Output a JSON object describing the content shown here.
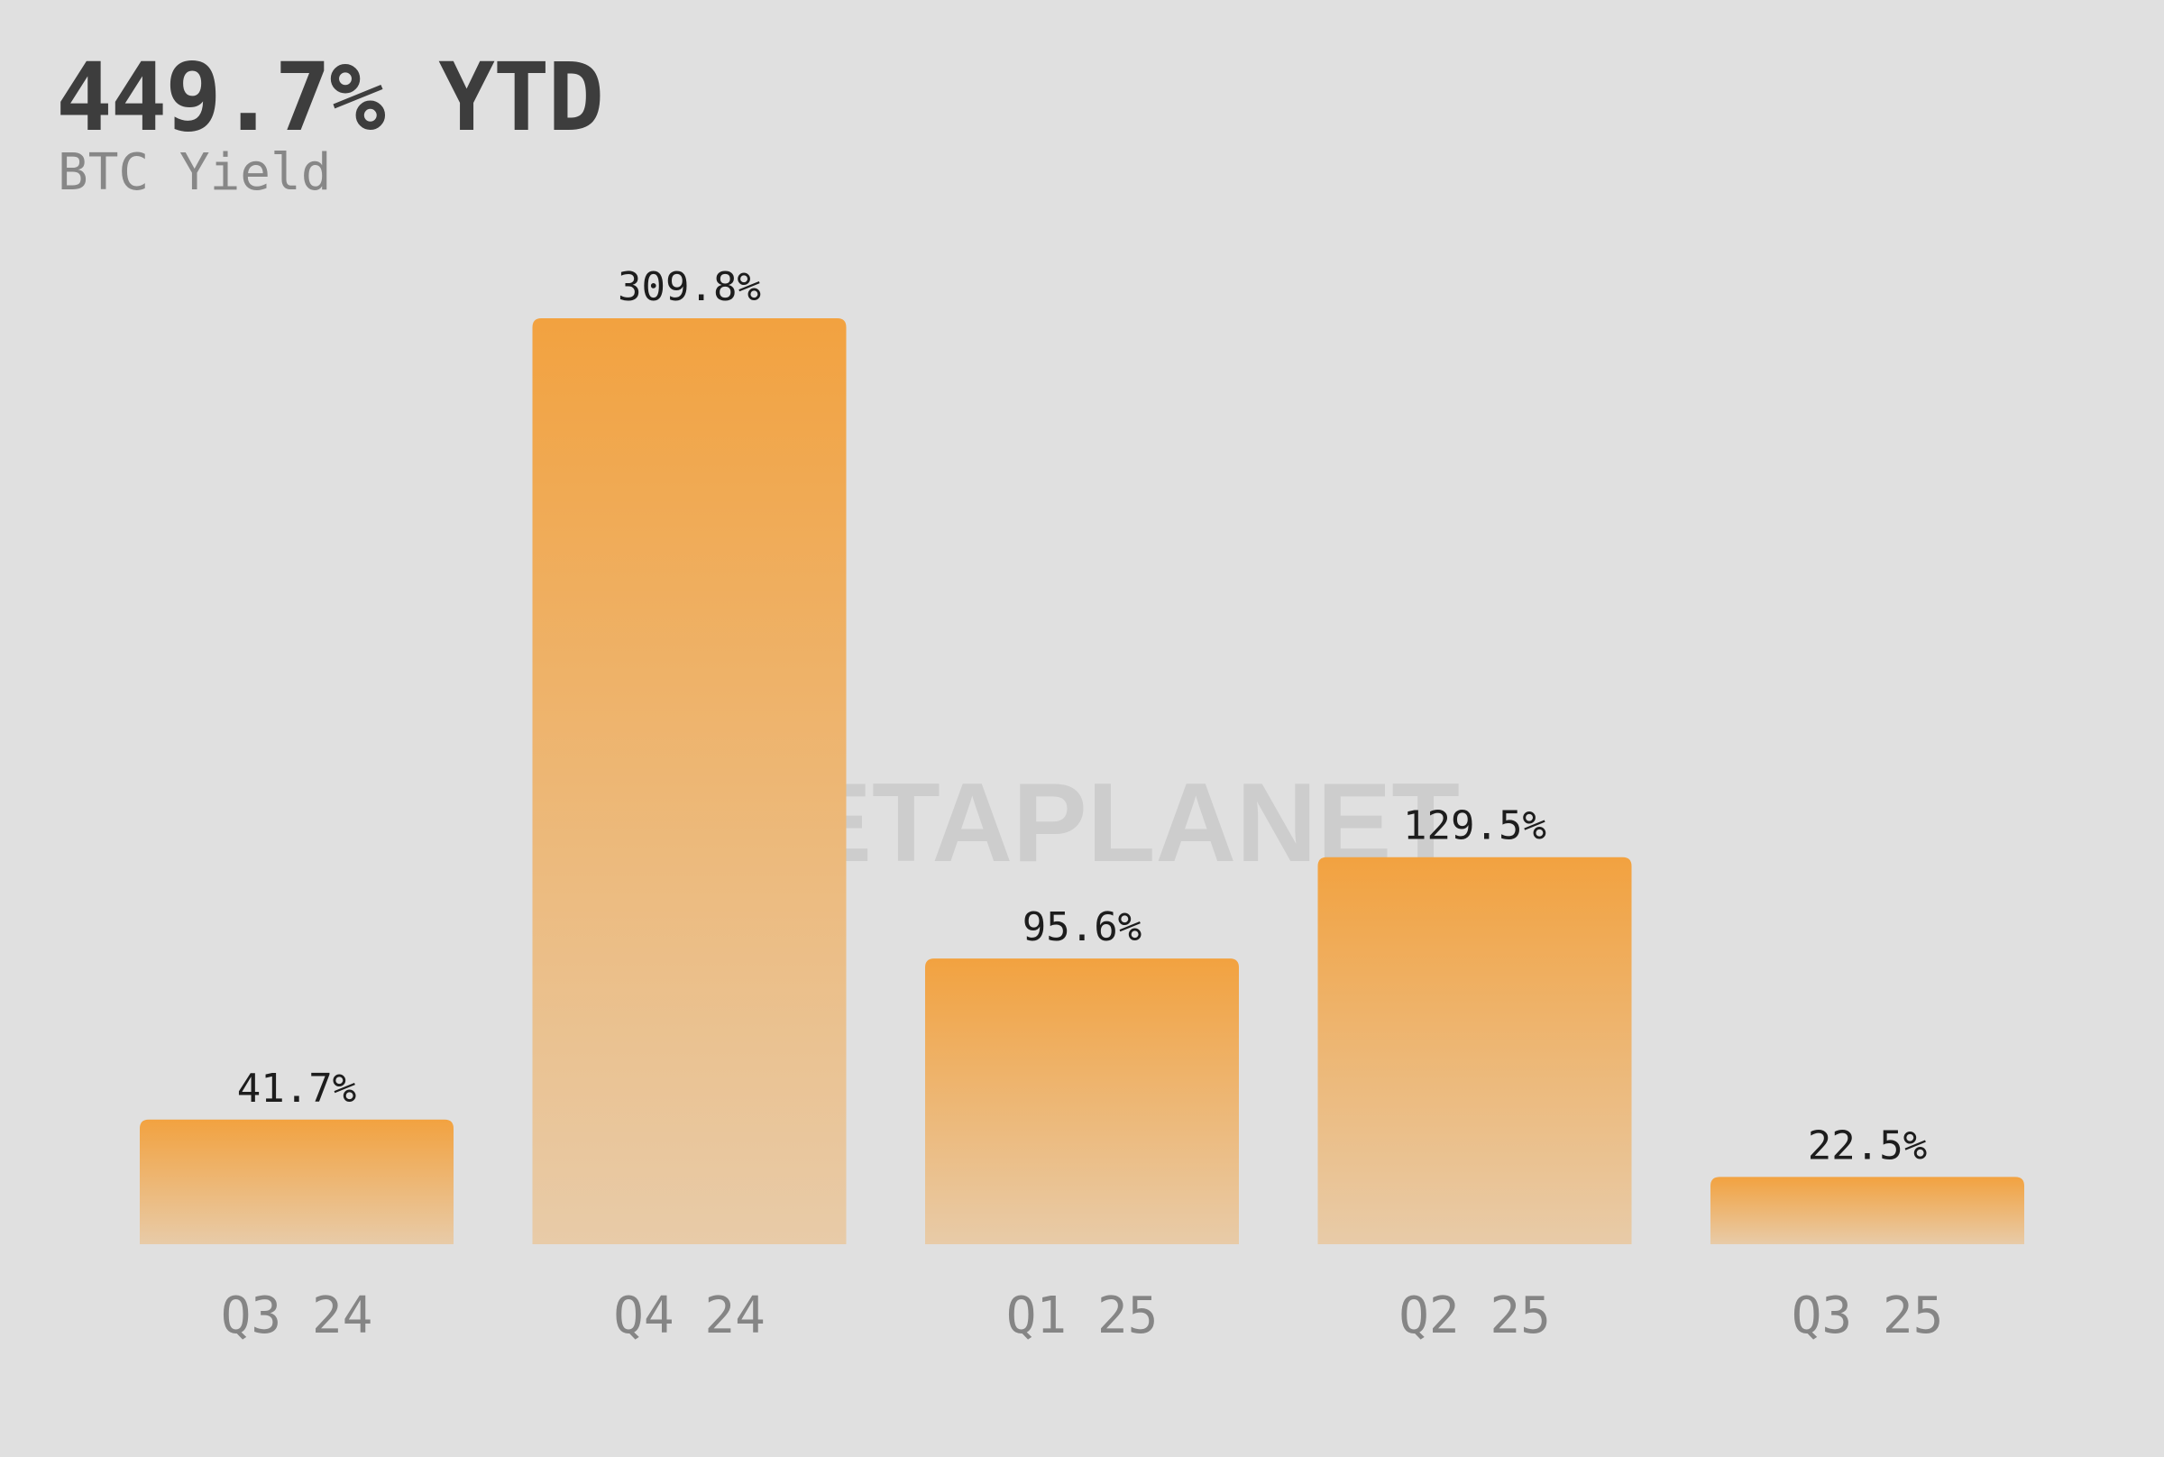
{
  "header": {
    "headline": "449.7% YTD",
    "subtitle": "BTC Yield"
  },
  "watermark": {
    "text": "METAPLANET"
  },
  "colors": {
    "background": "#e0e0e0",
    "bar_top": "#f2a240",
    "bar_bottom": "#e8cba8",
    "headline": "#3d3d3d",
    "subtitle": "#878787",
    "value_label": "#1d1d1d",
    "tick_label": "#858585"
  },
  "chart_data": {
    "type": "bar",
    "title": "",
    "xlabel": "",
    "ylabel": "",
    "categories": [
      "Q3 24",
      "Q4 24",
      "Q1 25",
      "Q2 25",
      "Q3 25"
    ],
    "values": [
      41.7,
      309.8,
      95.6,
      129.5,
      22.5
    ],
    "value_labels": [
      "41.7%",
      "309.8%",
      "95.6%",
      "129.5%",
      "22.5%"
    ],
    "ylim": [
      0,
      309.8
    ],
    "grid": false,
    "legend": "none"
  }
}
